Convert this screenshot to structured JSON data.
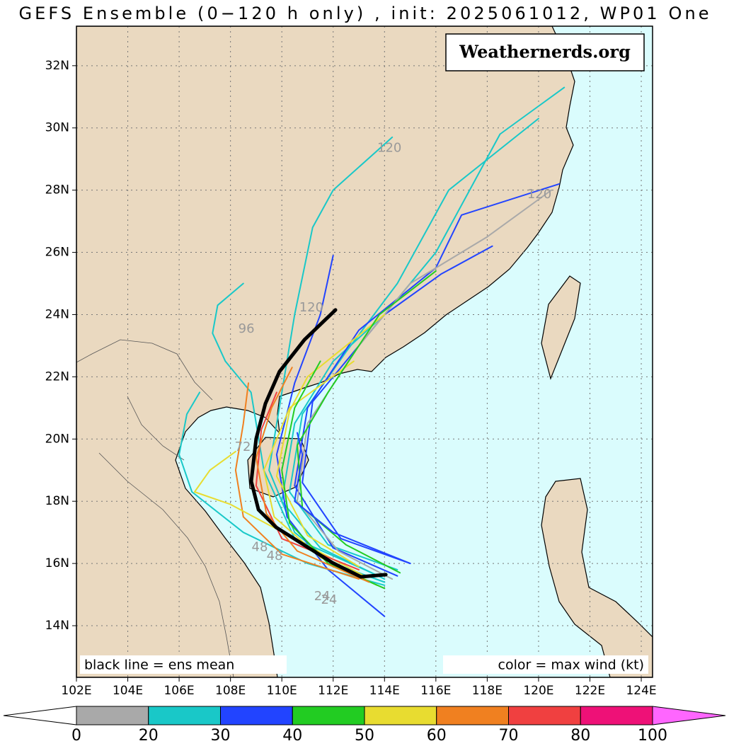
{
  "chart_data": {
    "type": "track",
    "title": "GEFS Ensemble (0−120 h only) , init: 2025061012, WP01 One",
    "watermark": "Weathernerds.org",
    "annotations": [
      "black line = ens mean",
      "color = max wind (kt)"
    ],
    "xlim": [
      102,
      124.44
    ],
    "ylim": [
      12.34,
      33.27
    ],
    "xticks": [
      {
        "value": 102,
        "label": "102E"
      },
      {
        "value": 104,
        "label": "104E"
      },
      {
        "value": 106,
        "label": "106E"
      },
      {
        "value": 108,
        "label": "108E"
      },
      {
        "value": 110,
        "label": "110E"
      },
      {
        "value": 112,
        "label": "112E"
      },
      {
        "value": 114,
        "label": "114E"
      },
      {
        "value": 116,
        "label": "116E"
      },
      {
        "value": 118,
        "label": "118E"
      },
      {
        "value": 120,
        "label": "120E"
      },
      {
        "value": 122,
        "label": "122E"
      },
      {
        "value": 124,
        "label": "124E"
      }
    ],
    "yticks": [
      {
        "value": 14,
        "label": "14N"
      },
      {
        "value": 16,
        "label": "16N"
      },
      {
        "value": 18,
        "label": "18N"
      },
      {
        "value": 20,
        "label": "20N"
      },
      {
        "value": 22,
        "label": "22N"
      },
      {
        "value": 24,
        "label": "24N"
      },
      {
        "value": 26,
        "label": "26N"
      },
      {
        "value": 28,
        "label": "28N"
      },
      {
        "value": 30,
        "label": "30N"
      },
      {
        "value": 32,
        "label": "32N"
      }
    ],
    "grid": true,
    "tracks": [
      {
        "color": "#19c8c8",
        "lon": [
          114.0,
          112.0,
          110.5,
          109.5,
          110.0,
          110.5,
          111.2,
          112.0,
          114.3
        ],
        "lat": [
          15.4,
          16.0,
          17.0,
          19.0,
          21.5,
          24.0,
          26.8,
          28.0,
          29.7
        ]
      },
      {
        "color": "#19c8c8",
        "lon": [
          114.0,
          111.5,
          110.0,
          110.5,
          112.0,
          114.0,
          116.0,
          118.5,
          121.0
        ],
        "lat": [
          15.5,
          16.5,
          18.0,
          20.5,
          22.5,
          24.0,
          26.0,
          29.8,
          31.3
        ]
      },
      {
        "color": "#19c8c8",
        "lon": [
          114.5,
          111.8,
          110.3,
          110.8,
          112.5,
          114.5,
          116.5,
          120.0
        ],
        "lat": [
          15.8,
          16.6,
          18.3,
          20.8,
          22.8,
          25.0,
          28.0,
          30.3
        ]
      },
      {
        "color": "#2244ff",
        "lon": [
          114.5,
          112.0,
          110.5,
          111.0,
          113.0,
          116.0,
          117.0,
          120.8
        ],
        "lat": [
          15.6,
          16.5,
          18.5,
          21.0,
          23.5,
          25.5,
          27.2,
          28.2
        ]
      },
      {
        "color": "#2244ff",
        "lon": [
          115.0,
          112.3,
          110.8,
          111.2,
          114.0,
          116.2,
          118.2
        ],
        "lat": [
          16.0,
          16.8,
          18.6,
          21.2,
          24.0,
          25.3,
          26.2
        ]
      },
      {
        "color": "#2244ff",
        "lon": [
          114.0,
          111.8,
          110.2,
          109.8,
          110.5,
          111.5,
          112.0
        ],
        "lat": [
          14.3,
          15.8,
          17.5,
          19.5,
          21.8,
          24.0,
          25.9
        ]
      },
      {
        "color": "#a9a9a9",
        "lon": [
          114.3,
          112.2,
          110.6,
          111.0,
          113.0,
          115.0,
          118.0,
          120.5
        ],
        "lat": [
          15.5,
          16.4,
          18.0,
          20.5,
          23.0,
          25.0,
          26.5,
          28.0
        ]
      },
      {
        "color": "#19c8c8",
        "lon": [
          114.0,
          111.0,
          108.5,
          106.5,
          106.0,
          106.3,
          106.8
        ],
        "lat": [
          15.3,
          16.0,
          17.0,
          18.3,
          19.5,
          20.8,
          21.5
        ]
      },
      {
        "color": "#19c8c8",
        "lon": [
          113.5,
          110.5,
          109.3,
          108.8,
          107.8,
          107.3,
          107.5,
          108.5
        ],
        "lat": [
          15.7,
          16.8,
          19.0,
          21.5,
          22.5,
          23.4,
          24.3,
          25.0
        ]
      },
      {
        "color": "#f08020",
        "lon": [
          113.0,
          110.0,
          108.5,
          108.2,
          108.5,
          108.7
        ],
        "lat": [
          15.5,
          16.3,
          17.5,
          19.0,
          20.5,
          21.8
        ]
      },
      {
        "color": "#e8dc30",
        "lon": [
          113.7,
          111.5,
          109.7,
          109.3,
          110.3,
          112.8
        ],
        "lat": [
          15.3,
          16.2,
          17.5,
          19.0,
          21.0,
          22.5
        ]
      },
      {
        "color": "#e8dc30",
        "lon": [
          113.2,
          110.5,
          108.0,
          106.6,
          107.2,
          108.2
        ],
        "lat": [
          15.6,
          16.8,
          17.9,
          18.3,
          19.0,
          19.6
        ]
      },
      {
        "color": "#e8dc30",
        "lon": [
          113.0,
          111.0,
          109.8,
          110.3,
          111.0,
          114.0
        ],
        "lat": [
          15.9,
          16.9,
          18.8,
          20.9,
          22.0,
          24.0
        ]
      },
      {
        "color": "#22cc22",
        "lon": [
          114.0,
          111.8,
          110.3,
          110.0,
          110.5,
          111.5
        ],
        "lat": [
          15.2,
          16.0,
          17.3,
          19.0,
          21.0,
          22.5
        ]
      },
      {
        "color": "#22cc22",
        "lon": [
          114.6,
          112.5,
          110.8,
          110.6,
          111.8,
          113.8,
          116.0
        ],
        "lat": [
          15.7,
          16.6,
          17.8,
          19.8,
          21.5,
          24.0,
          25.4
        ]
      },
      {
        "color": "#2244ff",
        "lon": [
          115.0,
          112.0,
          110.5,
          110.8,
          110.6
        ],
        "lat": [
          16.0,
          17.0,
          18.0,
          19.5,
          20.2
        ]
      },
      {
        "color": "#f04040",
        "lon": [
          113.0,
          110.0,
          109.0,
          109.2,
          109.8
        ],
        "lat": [
          15.8,
          16.8,
          18.5,
          20.3,
          21.5
        ]
      },
      {
        "color": "#f08020",
        "lon": [
          113.4,
          110.6,
          109.4,
          109.0,
          109.6,
          110.4
        ],
        "lat": [
          15.4,
          16.4,
          17.6,
          19.4,
          21.0,
          22.3
        ]
      }
    ],
    "mean_track": {
      "color": "#000000",
      "lon": [
        114.05,
        113.08,
        111.98,
        110.88,
        109.78,
        109.09,
        108.81,
        109.0,
        109.36,
        109.91,
        110.88,
        112.09
      ],
      "lat": [
        15.64,
        15.57,
        16.02,
        16.59,
        17.16,
        17.73,
        18.64,
        20.01,
        21.14,
        22.17,
        23.19,
        24.15
      ]
    },
    "hour_labels": [
      {
        "text": "120",
        "lon": 114.19,
        "lat": 29.34
      },
      {
        "text": "120",
        "lon": 120.03,
        "lat": 27.86
      },
      {
        "text": "120",
        "lon": 111.15,
        "lat": 24.22
      },
      {
        "text": "96",
        "lon": 108.62,
        "lat": 23.53
      },
      {
        "text": "72",
        "lon": 108.48,
        "lat": 19.73
      },
      {
        "text": "48",
        "lon": 109.14,
        "lat": 16.52
      },
      {
        "text": "48",
        "lon": 109.72,
        "lat": 16.23
      },
      {
        "text": "24",
        "lon": 111.57,
        "lat": 14.93
      },
      {
        "text": "24",
        "lon": 111.84,
        "lat": 14.82
      }
    ],
    "colorbar": {
      "bounds": [
        0,
        20,
        30,
        40,
        50,
        60,
        70,
        80,
        100
      ],
      "colors": [
        "#a9a9a9",
        "#19c8c8",
        "#2244ff",
        "#22cc22",
        "#e8dc30",
        "#f08020",
        "#f04040",
        "#ee1177"
      ],
      "under_color": "#ffffff",
      "over_color": "#ff66ff"
    }
  }
}
